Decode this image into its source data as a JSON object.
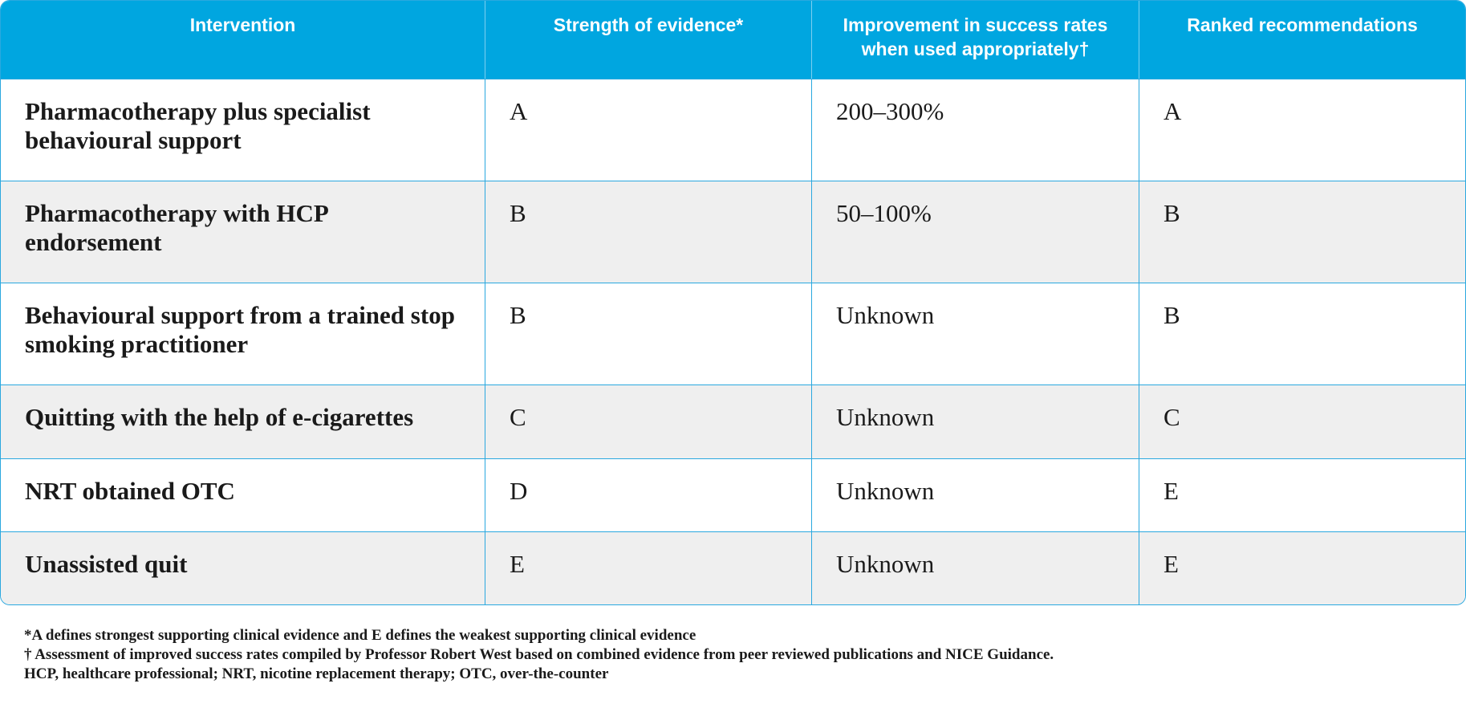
{
  "table": {
    "header": [
      "Intervention",
      "Strength of evidence*",
      "Improvement in success rates when used appropriately†",
      "Ranked recommendations"
    ],
    "rows": [
      [
        "Pharmacotherapy plus specialist behavioural support",
        "A",
        "200–300%",
        "A"
      ],
      [
        "Pharmacotherapy with HCP endorsement",
        "B",
        "50–100%",
        "B"
      ],
      [
        "Behavioural support from a trained stop smoking practitioner",
        "B",
        "Unknown",
        "B"
      ],
      [
        "Quitting with the help of e-cigarettes",
        "C",
        "Unknown",
        "C"
      ],
      [
        "NRT obtained OTC",
        "D",
        "Unknown",
        "E"
      ],
      [
        "Unassisted quit",
        "E",
        "Unknown",
        "E"
      ]
    ]
  },
  "footnotes": [
    "*A defines strongest supporting clinical evidence and E defines the weakest supporting clinical evidence",
    "† Assessment of improved success rates compiled by Professor Robert West based on combined evidence from peer reviewed publications and NICE Guidance.",
    "HCP, healthcare professional; NRT, nicotine replacement therapy; OTC, over-the-counter"
  ]
}
